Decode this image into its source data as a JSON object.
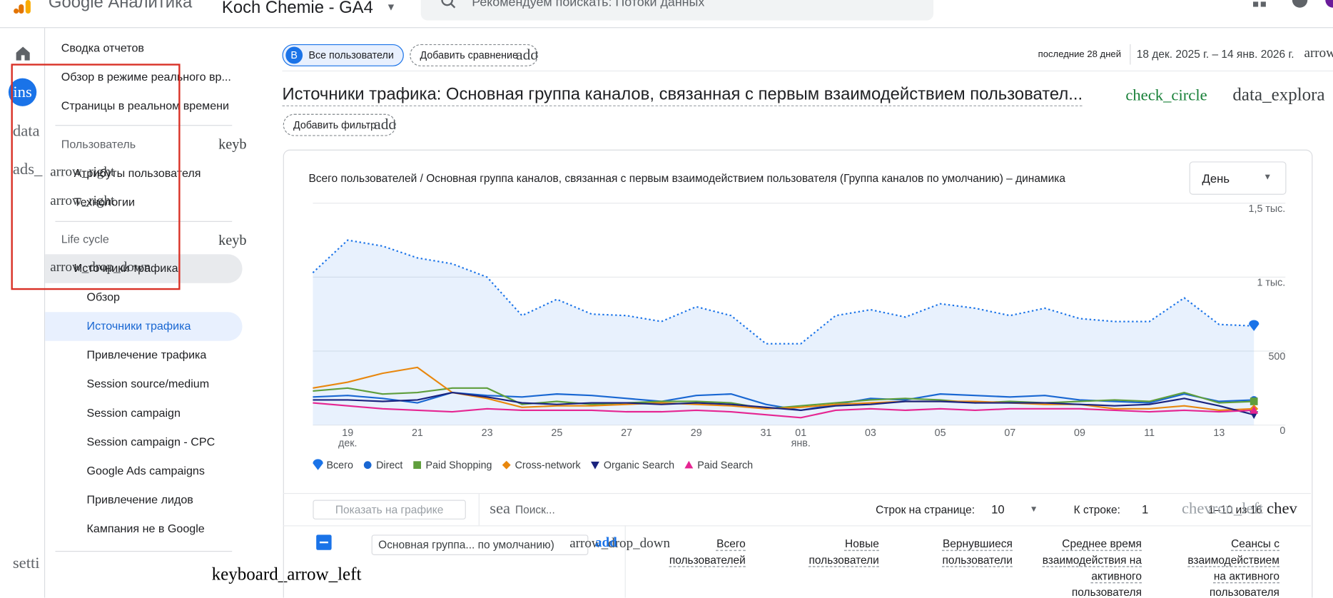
{
  "header": {
    "product": "Google Аналитика",
    "property": "Koch Chemie - GA4",
    "search": "Рекомендуем поискать:  Потоки данных"
  },
  "rail": {
    "avatar": "ins",
    "items": [
      "data",
      "ads_"
    ],
    "settings": "setti"
  },
  "sidebar": {
    "top": [
      "Сводка отчетов",
      "Обзор в режиме реального вр...",
      "Страницы в реальном времени"
    ],
    "user": {
      "label": "Пользователь",
      "icon": "keyb",
      "items": [
        {
          "icon": "arrow_right",
          "label": "Атрибуты пользователя"
        },
        {
          "icon": "arrow_right",
          "label": "Технологии"
        }
      ]
    },
    "lifecycle": {
      "label": "Life cycle",
      "icon": "keyb",
      "group": {
        "icon": "arrow_drop_down",
        "label": "Источники трафика"
      },
      "items": [
        "Обзор",
        "Источники трафика",
        "Привлечение трафика",
        "Session source/medium",
        "Session campaign",
        "Session campaign - CPC",
        "Google Ads campaigns",
        "Привлечение лидов",
        "Кампания не в Google"
      ]
    },
    "collapse": "keyboard_arrow_left"
  },
  "toolbar": {
    "segment_badge": "B",
    "segment": "Все пользователи",
    "compare": "Добавить сравнение",
    "compare_icon": "add",
    "period": "последние 28 дней",
    "dates": "18 дек. 2025 г. – 14 янв. 2026 г.",
    "dates_icon": "arrow"
  },
  "report": {
    "title": "Источники трафика: Основная группа каналов, связанная с первым взаимодействием пользовател...",
    "icons": [
      "check_circle",
      "data_explora"
    ],
    "filter": "Добавить фильтр",
    "filter_icon": "add"
  },
  "chart_data": {
    "type": "line",
    "title": "Всего пользователей / Основная группа каналов, связанная с первым взаимодействием пользователя (Группа каналов по умолчанию) – динамика",
    "granularity": "День",
    "categories": [
      null,
      "19 дек.",
      null,
      "21",
      null,
      "23",
      null,
      "25",
      null,
      "27",
      null,
      "29",
      null,
      "31",
      "01 янв.",
      null,
      "03",
      null,
      "05",
      null,
      "07",
      null,
      "09",
      null,
      "11",
      null,
      "13",
      null
    ],
    "series": [
      {
        "name": "Всего",
        "color": "#1a73e8",
        "marker": "drop",
        "dash": "dotted",
        "area": true,
        "values": [
          1030,
          1250,
          1210,
          1130,
          1090,
          1000,
          740,
          850,
          750,
          740,
          700,
          800,
          740,
          550,
          550,
          740,
          780,
          730,
          820,
          790,
          740,
          790,
          720,
          700,
          700,
          860,
          680,
          670
        ]
      },
      {
        "name": "Direct",
        "color": "#1967d2",
        "marker": "circle",
        "values": [
          190,
          200,
          180,
          150,
          220,
          200,
          190,
          210,
          200,
          180,
          160,
          200,
          210,
          140,
          100,
          140,
          180,
          170,
          210,
          200,
          190,
          200,
          170,
          160,
          150,
          210,
          160,
          170
        ]
      },
      {
        "name": "Paid Shopping",
        "color": "#5f9e3c",
        "marker": "square",
        "values": [
          230,
          250,
          210,
          220,
          250,
          250,
          140,
          160,
          140,
          150,
          160,
          160,
          150,
          110,
          130,
          150,
          170,
          180,
          170,
          150,
          160,
          150,
          160,
          170,
          160,
          220,
          150,
          160
        ]
      },
      {
        "name": "Cross-network",
        "color": "#e8870e",
        "marker": "diamond",
        "values": [
          250,
          290,
          350,
          390,
          220,
          180,
          120,
          130,
          130,
          140,
          150,
          140,
          130,
          110,
          120,
          140,
          150,
          160,
          160,
          160,
          150,
          140,
          140,
          110,
          110,
          130,
          100,
          110
        ]
      },
      {
        "name": "Organic Search",
        "color": "#1a237e",
        "marker": "triangle-down",
        "values": [
          170,
          170,
          160,
          170,
          220,
          190,
          150,
          140,
          150,
          150,
          140,
          150,
          140,
          120,
          100,
          130,
          140,
          160,
          160,
          150,
          150,
          150,
          140,
          130,
          140,
          180,
          130,
          70
        ]
      },
      {
        "name": "Paid Search",
        "color": "#e52592",
        "marker": "triangle-up",
        "values": [
          150,
          130,
          110,
          100,
          90,
          110,
          100,
          100,
          100,
          90,
          90,
          100,
          90,
          70,
          50,
          100,
          110,
          100,
          110,
          100,
          110,
          110,
          110,
          100,
          90,
          100,
          90,
          100
        ]
      }
    ],
    "ylim": [
      0,
      1500
    ],
    "yticks": [
      0,
      500,
      {
        "value": 1000,
        "label": "1 тыс."
      },
      {
        "value": 1500,
        "label": "1,5 тыс."
      }
    ],
    "grid": true
  },
  "table": {
    "show_on_chart": "Показать на графике",
    "search_icon": "sea",
    "search": "Поиск...",
    "rows_label": "Строк на странице:",
    "rows": 10,
    "goto_label": "К строке:",
    "goto": 1,
    "range": "1–10 из 16",
    "prev_icon": "chevron_left",
    "next_icon": "chev",
    "dimension": "Основная группа... по умолчанию)",
    "dimension_icons": [
      "arrow_drop_down",
      "add"
    ],
    "columns": [
      "Всего пользователей",
      "Новые пользователи",
      "Вернувшиеся пользователи",
      "Среднее время взаимодействия на активного пользователя",
      "Сеансы с взаимодействием на активного пользователя"
    ]
  }
}
